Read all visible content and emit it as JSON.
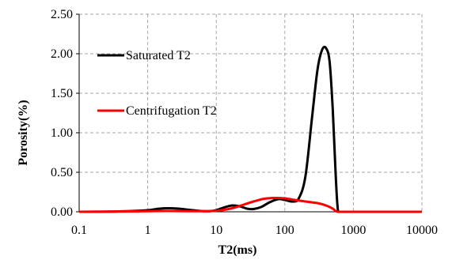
{
  "chart_data": {
    "type": "line",
    "title": "",
    "xlabel": "T2(ms)",
    "ylabel": "Porosity(%)",
    "x_scale": "log",
    "xlim": [
      0.1,
      10000
    ],
    "ylim": [
      0,
      2.5
    ],
    "x_ticks": [
      "0.1",
      "1",
      "10",
      "100",
      "1000",
      "10000"
    ],
    "y_ticks": [
      "0.00",
      "0.50",
      "1.00",
      "1.50",
      "2.00",
      "2.50"
    ],
    "grid": true,
    "legend_position": "top-left, inside plot",
    "series": [
      {
        "name": "Saturated T2",
        "color": "#000000",
        "x": [
          0.1,
          0.3,
          0.6,
          1,
          1.5,
          2,
          2.8,
          4,
          6,
          8,
          10,
          13,
          17,
          22,
          28,
          35,
          45,
          60,
          80,
          100,
          130,
          160,
          200,
          250,
          300,
          350,
          400,
          450,
          500,
          550,
          600,
          700,
          1000,
          10000
        ],
        "values": [
          0,
          0.003,
          0.01,
          0.02,
          0.04,
          0.045,
          0.04,
          0.025,
          0.01,
          0.008,
          0.02,
          0.055,
          0.08,
          0.07,
          0.04,
          0.035,
          0.06,
          0.12,
          0.16,
          0.15,
          0.13,
          0.17,
          0.45,
          1.2,
          1.8,
          2.05,
          2.07,
          1.9,
          1.3,
          0.5,
          0.0,
          0,
          0,
          0
        ]
      },
      {
        "name": "Centrifugation T2",
        "color": "#ff0000",
        "x": [
          0.1,
          0.3,
          0.6,
          1,
          2,
          4,
          8,
          12,
          18,
          25,
          35,
          50,
          70,
          100,
          140,
          200,
          300,
          400,
          500,
          550,
          600,
          700,
          1000,
          10000
        ],
        "values": [
          0,
          0.002,
          0.005,
          0.008,
          0.01,
          0.008,
          0.008,
          0.02,
          0.05,
          0.09,
          0.13,
          0.165,
          0.175,
          0.17,
          0.15,
          0.13,
          0.11,
          0.08,
          0.04,
          0.01,
          0,
          0,
          0,
          0
        ]
      }
    ]
  }
}
